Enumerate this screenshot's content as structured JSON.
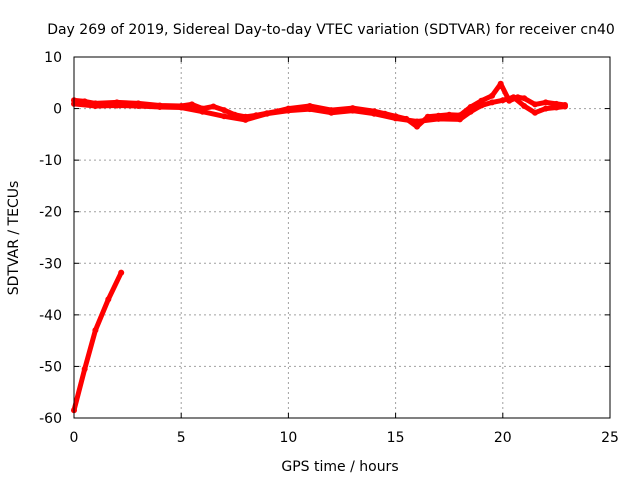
{
  "chart_data": {
    "type": "scatter",
    "title": "Day 269 of 2019, Sidereal Day-to-day VTEC variation (SDTVAR) for receiver cn40",
    "xlabel": "GPS time / hours",
    "ylabel": "SDTVAR / TECUs",
    "xlim": [
      0,
      25
    ],
    "ylim": [
      -60,
      10
    ],
    "xticks": [
      "0",
      "5",
      "10",
      "15",
      "20",
      "25"
    ],
    "yticks": [
      "10",
      "0",
      "-10",
      "-20",
      "-30",
      "-40",
      "-50",
      "-60"
    ],
    "grid": true,
    "series_color": "#ff0000",
    "series": [
      {
        "name": "SDTVAR",
        "segments": [
          [
            [
              0.0,
              -58.5
            ],
            [
              0.5,
              -50.5
            ],
            [
              1.0,
              -43.0
            ],
            [
              1.6,
              -37.0
            ],
            [
              2.2,
              -31.8
            ]
          ],
          [
            [
              0.0,
              1.6
            ],
            [
              0.5,
              1.4
            ],
            [
              1.0,
              1.0
            ],
            [
              2.0,
              1.2
            ],
            [
              3.0,
              1.0
            ],
            [
              4.0,
              0.6
            ],
            [
              5.0,
              0.5
            ],
            [
              5.5,
              0.8
            ],
            [
              6.0,
              0.0
            ],
            [
              6.5,
              0.4
            ],
            [
              7.0,
              -0.3
            ],
            [
              7.5,
              -1.2
            ],
            [
              8.0,
              -1.6
            ],
            [
              8.5,
              -1.3
            ],
            [
              9.0,
              -0.9
            ],
            [
              9.5,
              -0.5
            ],
            [
              10.0,
              0.0
            ],
            [
              11.0,
              0.5
            ],
            [
              12.0,
              -0.3
            ],
            [
              13.0,
              0.1
            ],
            [
              14.0,
              -0.5
            ],
            [
              14.5,
              -1.0
            ],
            [
              15.0,
              -1.5
            ],
            [
              15.5,
              -2.0
            ],
            [
              16.0,
              -3.5
            ],
            [
              16.5,
              -1.6
            ],
            [
              17.0,
              -1.4
            ],
            [
              17.5,
              -1.2
            ],
            [
              18.0,
              -1.3
            ],
            [
              18.5,
              0.3
            ],
            [
              19.0,
              1.5
            ],
            [
              19.5,
              2.5
            ],
            [
              19.9,
              4.8
            ],
            [
              20.3,
              1.5
            ],
            [
              20.7,
              2.2
            ],
            [
              21.0,
              2.0
            ],
            [
              21.5,
              0.8
            ],
            [
              22.0,
              1.2
            ],
            [
              22.5,
              0.9
            ],
            [
              22.9,
              0.7
            ]
          ],
          [
            [
              0.0,
              0.9
            ],
            [
              1.0,
              0.5
            ],
            [
              2.0,
              0.6
            ],
            [
              3.0,
              0.5
            ],
            [
              4.0,
              0.3
            ],
            [
              5.0,
              0.2
            ],
            [
              6.0,
              -0.6
            ],
            [
              7.0,
              -1.5
            ],
            [
              8.0,
              -2.2
            ],
            [
              9.0,
              -1.0
            ],
            [
              10.0,
              -0.4
            ],
            [
              11.0,
              -0.1
            ],
            [
              12.0,
              -0.8
            ],
            [
              13.0,
              -0.4
            ],
            [
              14.0,
              -1.0
            ],
            [
              15.0,
              -1.9
            ],
            [
              16.0,
              -2.5
            ],
            [
              17.0,
              -2.0
            ],
            [
              18.0,
              -2.1
            ],
            [
              18.5,
              -0.6
            ],
            [
              19.0,
              0.6
            ],
            [
              19.5,
              1.2
            ],
            [
              20.0,
              1.6
            ],
            [
              20.5,
              2.2
            ],
            [
              21.0,
              0.5
            ],
            [
              21.5,
              -0.8
            ],
            [
              22.0,
              0.0
            ],
            [
              22.5,
              0.2
            ],
            [
              22.9,
              0.4
            ]
          ]
        ]
      }
    ]
  }
}
